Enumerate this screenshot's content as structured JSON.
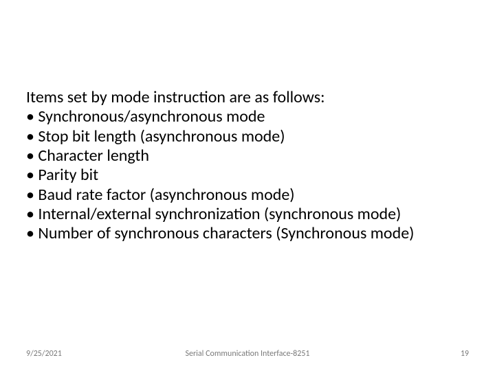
{
  "content": {
    "intro": "Items set by mode instruction are as follows:",
    "bullets": [
      "Synchronous/asynchronous mode",
      "Stop bit length (asynchronous mode)",
      "Character length",
      "Parity bit",
      "Baud rate factor (asynchronous mode)",
      "Internal/external synchronization (synchronous mode)",
      "Number of synchronous characters (Synchronous mode)"
    ]
  },
  "footer": {
    "date": "9/25/2021",
    "title": "Serial Communication Interface-8251",
    "page": "19"
  },
  "style": {
    "background_color": "#ffffff",
    "text_color": "#000000",
    "footer_color": "#7a7a7a",
    "body_fontsize": 24,
    "footer_fontsize": 12
  }
}
